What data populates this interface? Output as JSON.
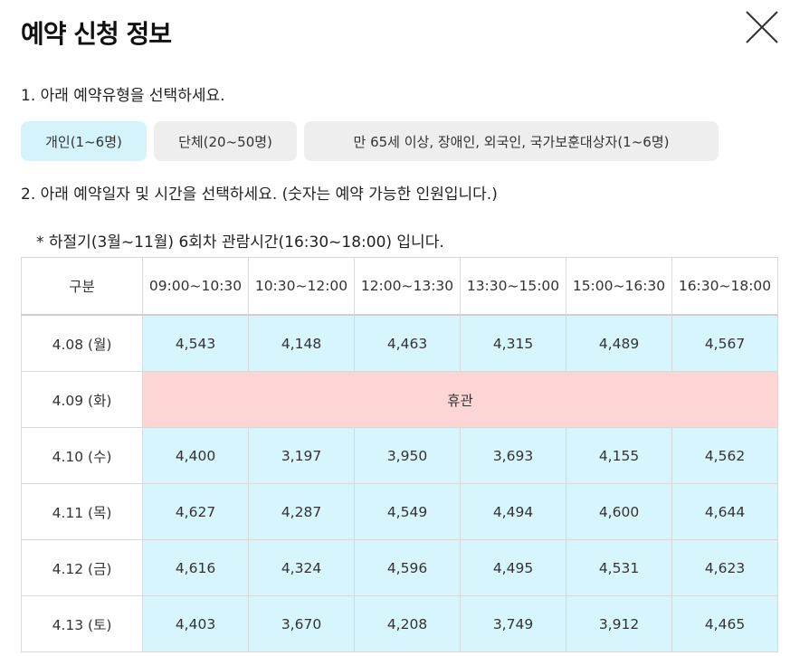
{
  "dialog": {
    "title": "예약 신청 정보"
  },
  "step1": {
    "label": "1. 아래 예약유형을 선택하세요.",
    "types": [
      "개인(1~6명)",
      "단체(20~50명)",
      "만 65세 이상, 장애인, 외국인, 국가보훈대상자(1~6명)"
    ],
    "selected_index": 0
  },
  "step2": {
    "label": "2. 아래 예약일자 및 시간을 선택하세요. (숫자는 예약 가능한 인원입니다.)",
    "note": "* 하절기(3월~11월) 6회차 관람시간(16:30~18:00) 입니다."
  },
  "table": {
    "header": [
      "구분",
      "09:00~10:30",
      "10:30~12:00",
      "12:00~13:30",
      "13:30~15:00",
      "15:00~16:30",
      "16:30~18:00"
    ],
    "rows": [
      {
        "date": "4.08 (월)",
        "slots": [
          "4,543",
          "4,148",
          "4,463",
          "4,315",
          "4,489",
          "4,567"
        ]
      },
      {
        "date": "4.09 (화)",
        "closed": "휴관"
      },
      {
        "date": "4.10 (수)",
        "slots": [
          "4,400",
          "3,197",
          "3,950",
          "3,693",
          "4,155",
          "4,562"
        ]
      },
      {
        "date": "4.11 (목)",
        "slots": [
          "4,627",
          "4,287",
          "4,549",
          "4,494",
          "4,600",
          "4,644"
        ]
      },
      {
        "date": "4.12 (금)",
        "slots": [
          "4,616",
          "4,324",
          "4,596",
          "4,495",
          "4,531",
          "4,623"
        ]
      },
      {
        "date": "4.13 (토)",
        "slots": [
          "4,403",
          "3,670",
          "4,208",
          "3,749",
          "3,912",
          "4,465"
        ]
      }
    ]
  },
  "colors": {
    "available": "#d6f5fc",
    "closed": "#fdd5d5",
    "selected_type": "#d4f3fb",
    "unselected_type": "#eeeeee"
  }
}
